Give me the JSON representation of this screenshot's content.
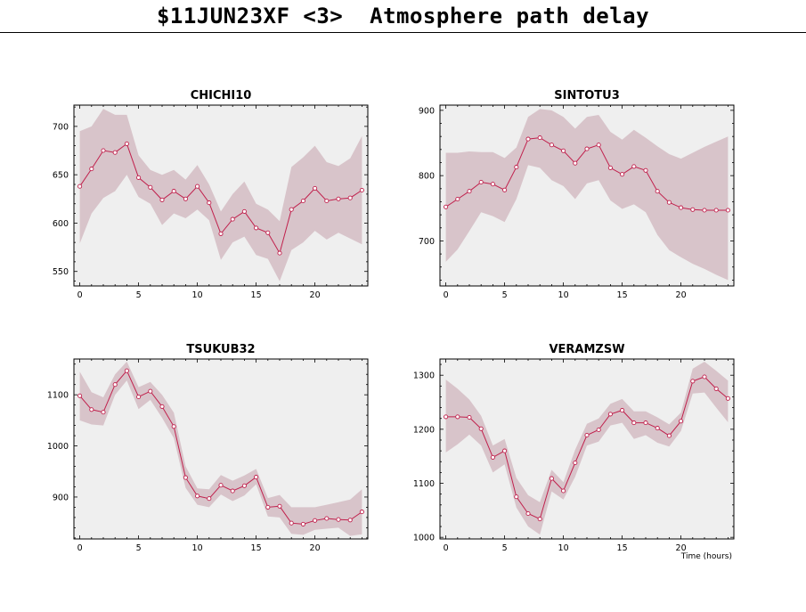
{
  "page": {
    "title": "$11JUN23XF <3>  Atmosphere path delay"
  },
  "colors": {
    "band": "#d8c4ca",
    "line": "#c0204c",
    "background": "#efefef"
  },
  "chart_data": [
    {
      "type": "line",
      "title": "CHICHI10",
      "xlim": [
        -0.5,
        24.5
      ],
      "ylim": [
        535,
        722
      ],
      "xticks": [
        0,
        5,
        10,
        15,
        20
      ],
      "yticks": [
        550,
        600,
        650,
        700
      ],
      "x": [
        0,
        1,
        2,
        3,
        4,
        5,
        6,
        7,
        8,
        9,
        10,
        11,
        12,
        13,
        14,
        15,
        16,
        17,
        18,
        19,
        20,
        21,
        22,
        23,
        24
      ],
      "values": [
        638,
        656,
        675,
        673,
        682,
        647,
        637,
        624,
        633,
        625,
        638,
        621,
        589,
        604,
        612,
        595,
        590,
        569,
        614,
        623,
        636,
        623,
        625,
        626,
        634
      ],
      "upper": [
        695,
        700,
        718,
        712,
        712,
        670,
        655,
        650,
        655,
        645,
        660,
        640,
        612,
        630,
        643,
        620,
        614,
        602,
        658,
        668,
        680,
        663,
        659,
        667,
        690
      ],
      "lower": [
        579,
        610,
        626,
        633,
        650,
        627,
        620,
        598,
        610,
        605,
        614,
        603,
        562,
        580,
        586,
        567,
        563,
        540,
        572,
        580,
        592,
        583,
        590,
        584,
        578
      ]
    },
    {
      "type": "line",
      "title": "SINTOTU3",
      "xlim": [
        -0.5,
        24.5
      ],
      "ylim": [
        631,
        908
      ],
      "xticks": [
        0,
        5,
        10,
        15,
        20
      ],
      "yticks": [
        700,
        800,
        900
      ],
      "x": [
        0,
        1,
        2,
        3,
        4,
        5,
        6,
        7,
        8,
        9,
        10,
        11,
        12,
        13,
        14,
        15,
        16,
        17,
        18,
        19,
        20,
        21,
        22,
        23,
        24
      ],
      "values": [
        752,
        764,
        776,
        790,
        787,
        778,
        813,
        856,
        858,
        847,
        838,
        819,
        841,
        847,
        812,
        802,
        814,
        808,
        776,
        759,
        751,
        748,
        747,
        747,
        747
      ],
      "upper": [
        835,
        835,
        837,
        836,
        836,
        827,
        843,
        890,
        902,
        900,
        890,
        872,
        890,
        893,
        867,
        855,
        870,
        858,
        845,
        833,
        826,
        835,
        844,
        852,
        860
      ],
      "lower": [
        668,
        687,
        715,
        744,
        738,
        729,
        764,
        816,
        812,
        793,
        784,
        764,
        788,
        793,
        762,
        749,
        756,
        744,
        709,
        686,
        675,
        665,
        657,
        648,
        640
      ]
    },
    {
      "type": "line",
      "title": "TSUKUB32",
      "xlim": [
        -0.5,
        24.5
      ],
      "ylim": [
        818,
        1170
      ],
      "xticks": [
        0,
        5,
        10,
        15,
        20
      ],
      "yticks": [
        900,
        1000,
        1100
      ],
      "x": [
        0,
        1,
        2,
        3,
        4,
        5,
        6,
        7,
        8,
        9,
        10,
        11,
        12,
        13,
        14,
        15,
        16,
        17,
        18,
        19,
        20,
        21,
        22,
        23,
        24
      ],
      "values": [
        1098,
        1071,
        1066,
        1120,
        1147,
        1096,
        1107,
        1077,
        1038,
        938,
        902,
        897,
        923,
        912,
        922,
        939,
        880,
        882,
        849,
        847,
        854,
        858,
        856,
        855,
        871
      ],
      "upper": [
        1145,
        1105,
        1095,
        1140,
        1165,
        1115,
        1125,
        1100,
        1065,
        960,
        917,
        915,
        943,
        932,
        942,
        955,
        898,
        904,
        880,
        880,
        880,
        885,
        890,
        895,
        915
      ],
      "lower": [
        1050,
        1042,
        1040,
        1100,
        1128,
        1072,
        1090,
        1055,
        1015,
        918,
        885,
        880,
        905,
        892,
        903,
        925,
        862,
        860,
        828,
        826,
        836,
        838,
        840,
        824,
        827
      ]
    },
    {
      "type": "line",
      "title": "VERAMZSW",
      "xlabel": "Time (hours)",
      "xlim": [
        -0.5,
        24.5
      ],
      "ylim": [
        997,
        1330
      ],
      "xticks": [
        0,
        5,
        10,
        15,
        20
      ],
      "yticks": [
        1000,
        1100,
        1200,
        1300
      ],
      "x": [
        0,
        1,
        2,
        3,
        4,
        5,
        6,
        7,
        8,
        9,
        10,
        11,
        12,
        13,
        14,
        15,
        16,
        17,
        18,
        19,
        20,
        21,
        22,
        23,
        24
      ],
      "values": [
        1223,
        1223,
        1222,
        1201,
        1148,
        1160,
        1075,
        1044,
        1034,
        1109,
        1086,
        1138,
        1189,
        1199,
        1228,
        1235,
        1212,
        1212,
        1202,
        1188,
        1215,
        1289,
        1297,
        1275,
        1257
      ],
      "upper": [
        1292,
        1275,
        1255,
        1225,
        1170,
        1182,
        1110,
        1078,
        1065,
        1125,
        1102,
        1162,
        1210,
        1220,
        1247,
        1256,
        1233,
        1233,
        1222,
        1209,
        1231,
        1312,
        1325,
        1308,
        1290
      ],
      "lower": [
        1157,
        1172,
        1190,
        1170,
        1120,
        1135,
        1055,
        1020,
        1005,
        1085,
        1070,
        1112,
        1170,
        1177,
        1207,
        1212,
        1182,
        1189,
        1175,
        1168,
        1197,
        1266,
        1268,
        1240,
        1213
      ]
    }
  ]
}
